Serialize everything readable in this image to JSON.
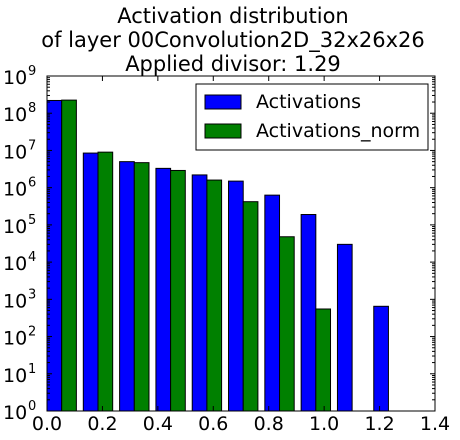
{
  "chart_data": {
    "type": "bar",
    "title_lines": [
      "Activation distribution",
      "of layer 00Convolution2D_32x26x26",
      "Applied divisor: 1.29"
    ],
    "xlabel": "",
    "ylabel": "",
    "xlim": [
      0.0,
      1.4
    ],
    "ylim": [
      1,
      1000000000
    ],
    "yscale": "log",
    "x_ticks": [
      "0.0",
      "0.2",
      "0.4",
      "0.6",
      "0.8",
      "1.0",
      "1.2",
      "1.4"
    ],
    "y_ticks": [
      {
        "base": "10",
        "exp": "0"
      },
      {
        "base": "10",
        "exp": "1"
      },
      {
        "base": "10",
        "exp": "2"
      },
      {
        "base": "10",
        "exp": "3"
      },
      {
        "base": "10",
        "exp": "4"
      },
      {
        "base": "10",
        "exp": "5"
      },
      {
        "base": "10",
        "exp": "6"
      },
      {
        "base": "10",
        "exp": "7"
      },
      {
        "base": "10",
        "exp": "8"
      },
      {
        "base": "10",
        "exp": "9"
      }
    ],
    "legend_position": "upper right",
    "grid": false,
    "series": [
      {
        "name": "Activations",
        "color": "#0000ff",
        "bins": [
          {
            "x0": 0.0,
            "x1": 0.053,
            "value": 220000000
          },
          {
            "x0": 0.131,
            "x1": 0.184,
            "value": 8500000
          },
          {
            "x0": 0.262,
            "x1": 0.315,
            "value": 5000000
          },
          {
            "x0": 0.393,
            "x1": 0.446,
            "value": 3300000
          },
          {
            "x0": 0.524,
            "x1": 0.577,
            "value": 2200000
          },
          {
            "x0": 0.655,
            "x1": 0.708,
            "value": 1500000
          },
          {
            "x0": 0.786,
            "x1": 0.839,
            "value": 630000
          },
          {
            "x0": 0.917,
            "x1": 0.97,
            "value": 190000
          },
          {
            "x0": 1.048,
            "x1": 1.101,
            "value": 30000
          },
          {
            "x0": 1.179,
            "x1": 1.232,
            "value": 650
          }
        ]
      },
      {
        "name": "Activations_norm",
        "color": "#008000",
        "bins": [
          {
            "x0": 0.053,
            "x1": 0.106,
            "value": 225000000
          },
          {
            "x0": 0.184,
            "x1": 0.237,
            "value": 9000000
          },
          {
            "x0": 0.315,
            "x1": 0.368,
            "value": 4700000
          },
          {
            "x0": 0.446,
            "x1": 0.499,
            "value": 2900000
          },
          {
            "x0": 0.577,
            "x1": 0.63,
            "value": 1600000
          },
          {
            "x0": 0.708,
            "x1": 0.761,
            "value": 420000
          },
          {
            "x0": 0.839,
            "x1": 0.892,
            "value": 48000
          },
          {
            "x0": 0.97,
            "x1": 1.023,
            "value": 550
          }
        ]
      }
    ]
  }
}
